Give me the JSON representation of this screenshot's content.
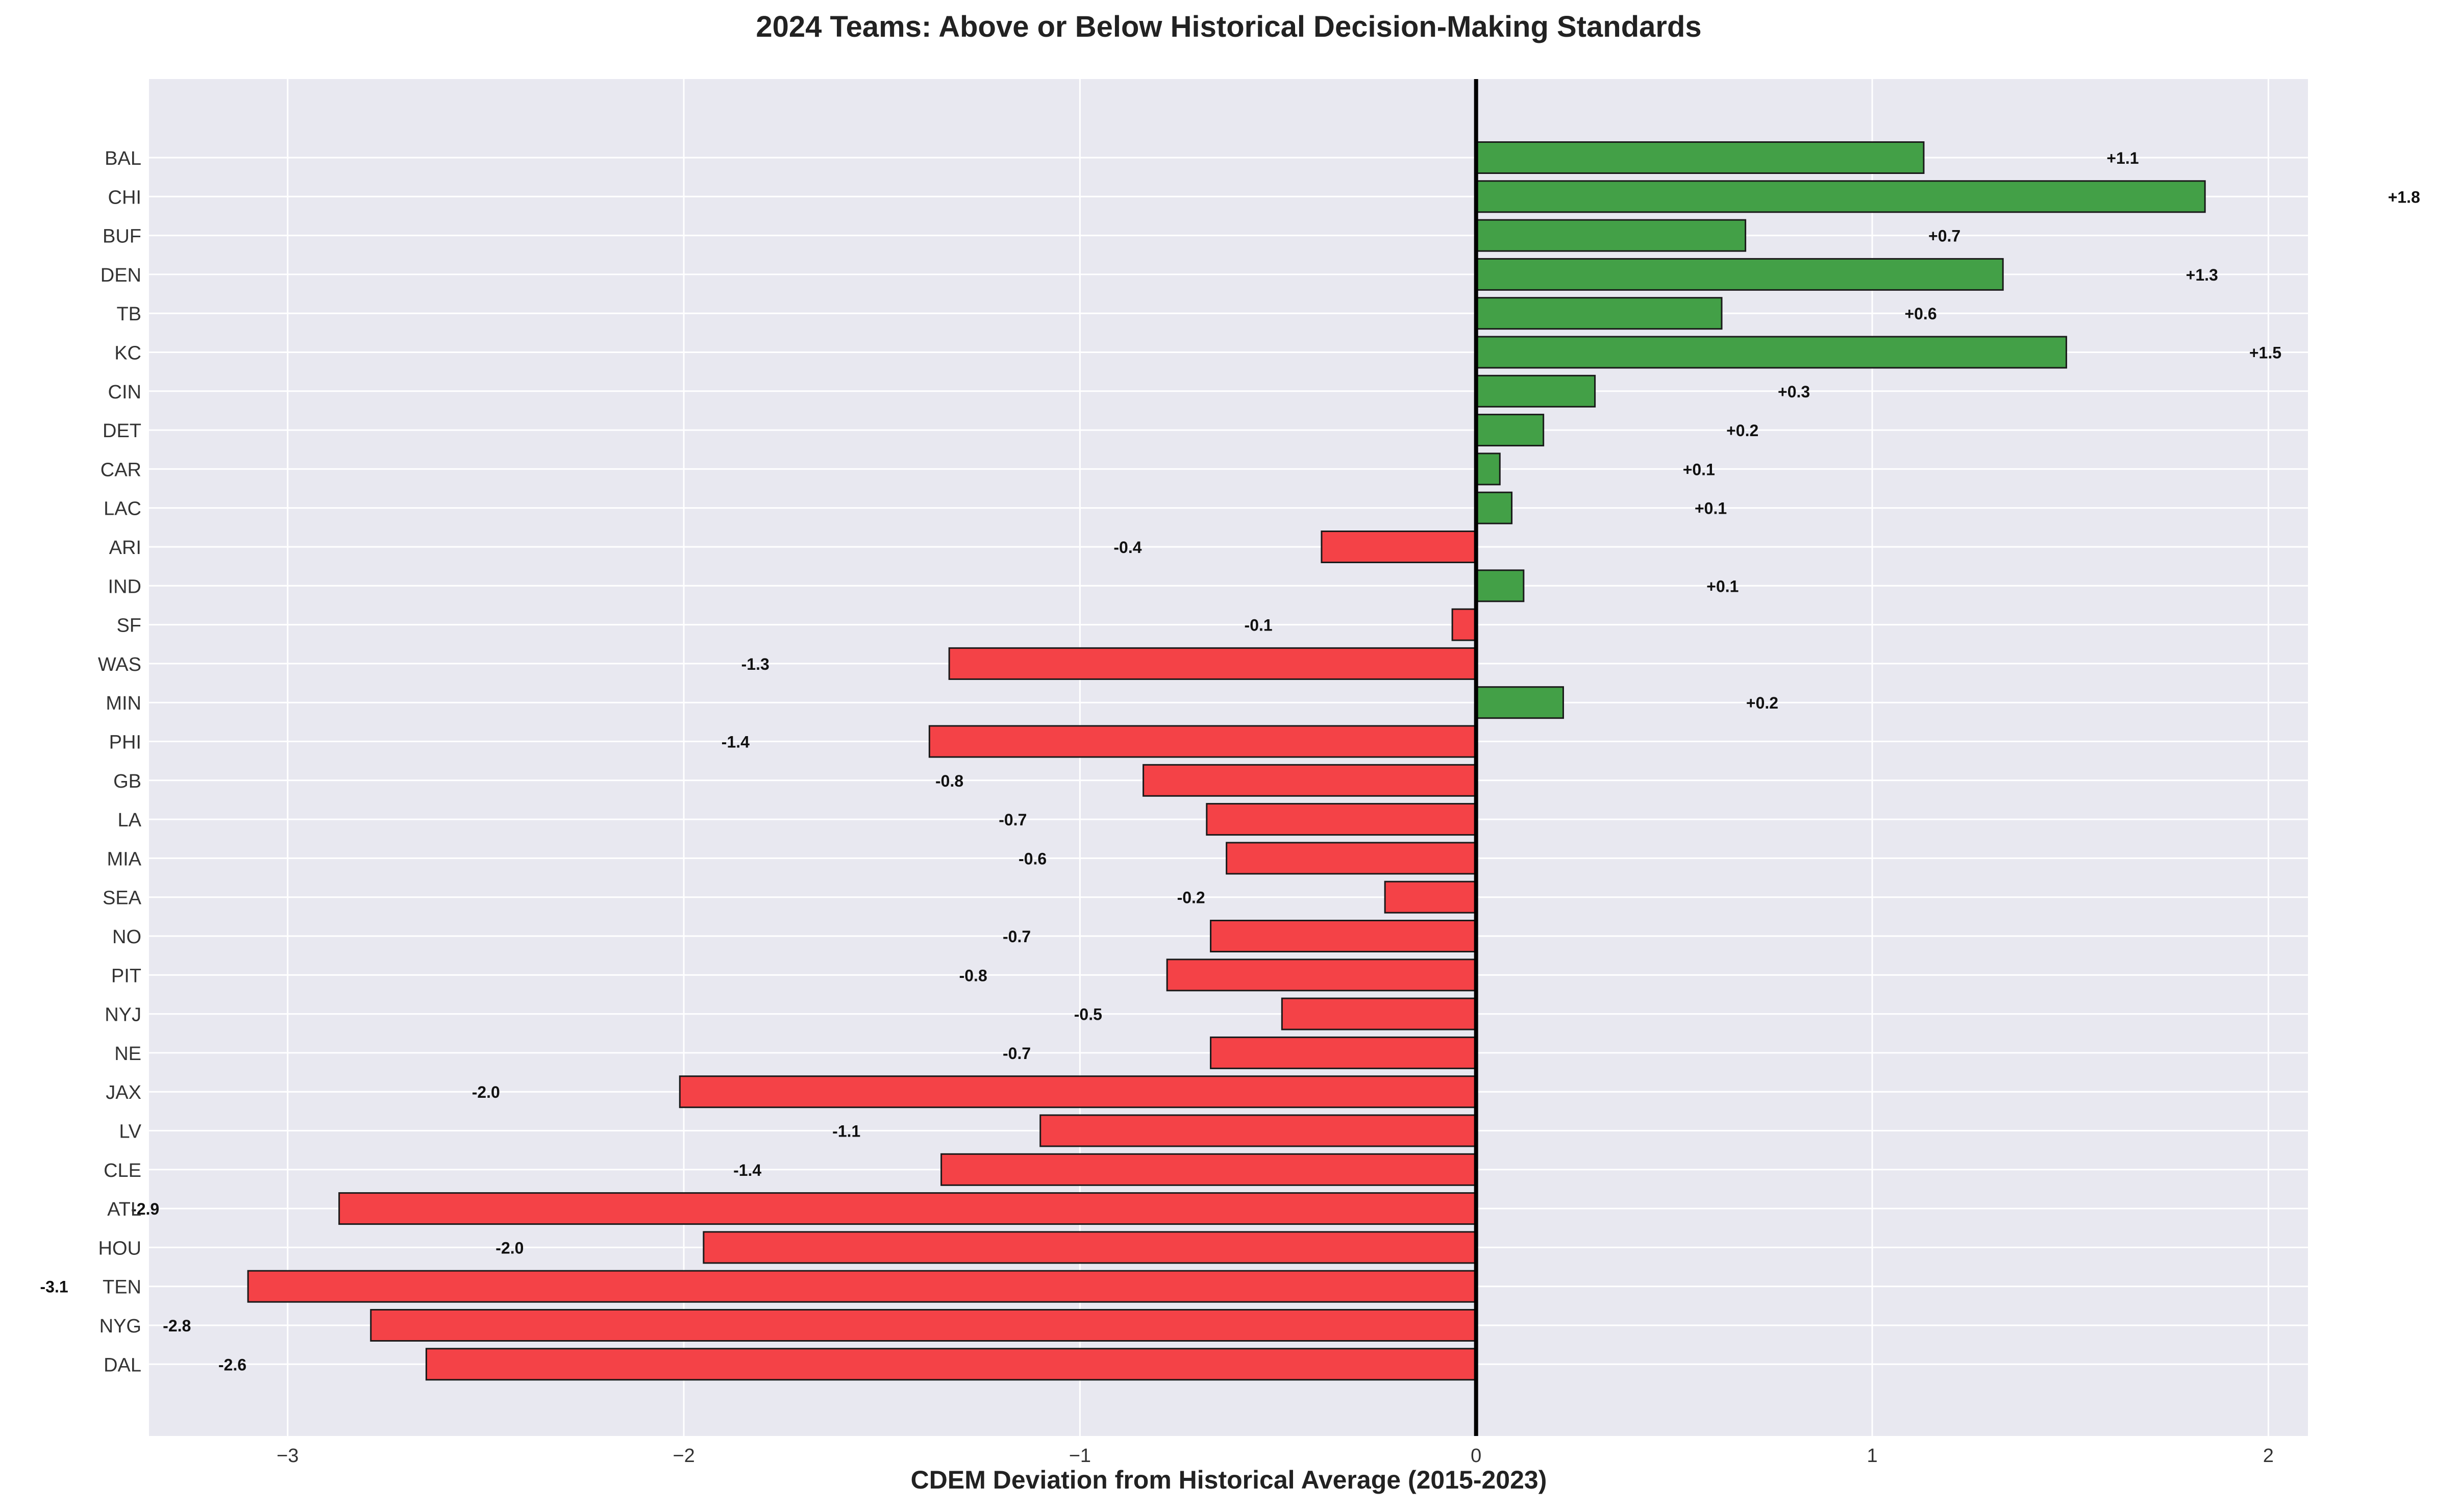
{
  "chart_data": {
    "type": "bar",
    "orientation": "horizontal",
    "title": "2024 Teams: Above or Below Historical Decision-Making Standards",
    "xlabel": "CDEM Deviation from Historical Average (2015-2023)",
    "ylabel": "",
    "xlim": [
      -3.35,
      2.1
    ],
    "xticks": [
      -3,
      -2,
      -1,
      0,
      1,
      2
    ],
    "xtick_labels": [
      "−3",
      "−2",
      "−1",
      "0",
      "1",
      "2"
    ],
    "grid": true,
    "legend": "none",
    "colors": {
      "positive": "#43a047",
      "negative": "#f44247",
      "background": "#e8e8f0",
      "grid": "#ffffff",
      "zero_line": "#000000",
      "edge": "#1a1a1a"
    },
    "categories": [
      "BAL",
      "CHI",
      "BUF",
      "DEN",
      "TB",
      "KC",
      "CIN",
      "DET",
      "CAR",
      "LAC",
      "ARI",
      "IND",
      "SF",
      "WAS",
      "MIN",
      "PHI",
      "GB",
      "LA",
      "MIA",
      "SEA",
      "NO",
      "PIT",
      "NYJ",
      "NE",
      "JAX",
      "LV",
      "CLE",
      "ATL",
      "HOU",
      "TEN",
      "NYG",
      "DAL"
    ],
    "values": [
      1.13,
      1.84,
      0.68,
      1.33,
      0.62,
      1.49,
      0.3,
      0.17,
      0.06,
      0.09,
      -0.39,
      0.12,
      -0.06,
      -1.33,
      0.22,
      -1.38,
      -0.84,
      -0.68,
      -0.63,
      -0.23,
      -0.67,
      -0.78,
      -0.49,
      -0.67,
      -2.01,
      -1.1,
      -1.35,
      -2.87,
      -1.95,
      -3.1,
      -2.79,
      -2.65
    ],
    "value_labels": [
      "+1.1",
      "+1.8",
      "+0.7",
      "+1.3",
      "+0.6",
      "+1.5",
      "+0.3",
      "+0.2",
      "+0.1",
      "+0.1",
      "-0.4",
      "+0.1",
      "-0.1",
      "-1.3",
      "+0.2",
      "-1.4",
      "-0.8",
      "-0.7",
      "-0.6",
      "-0.2",
      "-0.7",
      "-0.8",
      "-0.5",
      "-0.7",
      "-2.0",
      "-1.1",
      "-1.4",
      "-2.9",
      "-2.0",
      "-3.1",
      "-2.8",
      "-2.6"
    ]
  }
}
